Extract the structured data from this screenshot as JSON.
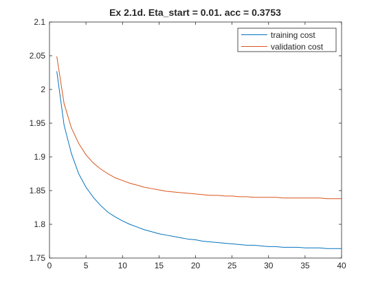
{
  "chart_data": {
    "type": "line",
    "title": "Ex 2.1d. Eta_start = 0.01. acc = 0.3753",
    "xlabel": "",
    "ylabel": "",
    "xlim": [
      0,
      40
    ],
    "ylim": [
      1.75,
      2.1
    ],
    "xticks": [
      0,
      5,
      10,
      15,
      20,
      25,
      30,
      35,
      40
    ],
    "yticks": [
      1.75,
      1.8,
      1.85,
      1.9,
      1.95,
      2,
      2.05,
      2.1
    ],
    "ytick_labels": [
      "1.75",
      "1.8",
      "1.85",
      "1.9",
      "1.95",
      "2",
      "2.05",
      "2.1"
    ],
    "grid": false,
    "legend_position": "top-right",
    "x": [
      1,
      2,
      3,
      4,
      5,
      6,
      7,
      8,
      9,
      10,
      11,
      12,
      13,
      14,
      15,
      16,
      17,
      18,
      19,
      20,
      21,
      22,
      23,
      24,
      25,
      26,
      27,
      28,
      29,
      30,
      31,
      32,
      33,
      34,
      35,
      36,
      37,
      38,
      39,
      40
    ],
    "series": [
      {
        "name": "training cost",
        "color": "#0072BD",
        "values": [
          2.027,
          1.947,
          1.905,
          1.875,
          1.855,
          1.84,
          1.828,
          1.818,
          1.811,
          1.805,
          1.8,
          1.796,
          1.792,
          1.789,
          1.786,
          1.784,
          1.782,
          1.78,
          1.778,
          1.777,
          1.775,
          1.774,
          1.773,
          1.772,
          1.771,
          1.77,
          1.769,
          1.769,
          1.768,
          1.767,
          1.767,
          1.766,
          1.766,
          1.766,
          1.765,
          1.765,
          1.765,
          1.764,
          1.764,
          1.764
        ]
      },
      {
        "name": "validation cost",
        "color": "#D95319",
        "values": [
          2.049,
          1.979,
          1.943,
          1.92,
          1.903,
          1.891,
          1.882,
          1.875,
          1.869,
          1.865,
          1.861,
          1.858,
          1.855,
          1.853,
          1.851,
          1.849,
          1.848,
          1.847,
          1.846,
          1.845,
          1.844,
          1.843,
          1.843,
          1.842,
          1.842,
          1.841,
          1.841,
          1.84,
          1.84,
          1.84,
          1.84,
          1.839,
          1.839,
          1.839,
          1.839,
          1.839,
          1.839,
          1.838,
          1.838,
          1.838
        ]
      }
    ]
  }
}
